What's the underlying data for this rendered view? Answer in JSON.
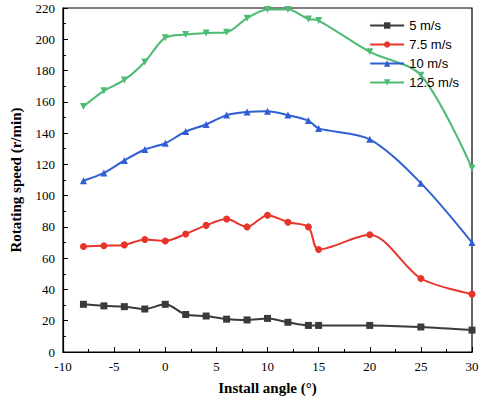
{
  "chart_data": {
    "type": "line",
    "x_label": "Install angle (°)",
    "y_label": "Rotating speed (r/min)",
    "x": [
      -8,
      -6,
      -4,
      -2,
      0,
      2,
      4,
      6,
      8,
      10,
      12,
      14,
      15,
      20,
      25,
      30
    ],
    "series": [
      {
        "name": "5 m/s",
        "color": "#3a3a3a",
        "marker": "square",
        "values": [
          30.5,
          29.5,
          29,
          27.5,
          30.5,
          24,
          23,
          21,
          20.5,
          21.5,
          19,
          17,
          17,
          17,
          16,
          14
        ]
      },
      {
        "name": "7.5 m/s",
        "color": "#e8352b",
        "marker": "circle",
        "values": [
          67.5,
          68,
          68.5,
          72,
          71,
          75.5,
          81,
          85,
          80,
          87.5,
          83,
          80,
          65.5,
          75,
          47,
          37
        ]
      },
      {
        "name": "10 m/s",
        "color": "#2f5fd3",
        "marker": "triangle",
        "values": [
          109.5,
          114.5,
          122.5,
          129.5,
          133.5,
          141,
          145.5,
          151.5,
          153.5,
          154,
          151.5,
          148,
          143,
          136,
          108,
          70
        ]
      },
      {
        "name": "12.5 m/s",
        "color": "#4dbb73",
        "marker": "triangle-down",
        "values": [
          157,
          167,
          174,
          185.5,
          201,
          203,
          204,
          204.5,
          213.5,
          219,
          219,
          213,
          212,
          192,
          177,
          117.5
        ]
      }
    ],
    "xlim": [
      -10,
      30
    ],
    "xticks": [
      -10,
      -5,
      0,
      5,
      10,
      15,
      20,
      25,
      30
    ],
    "ylim": [
      0,
      220
    ],
    "yticks": [
      0,
      20,
      40,
      60,
      80,
      100,
      120,
      140,
      160,
      180,
      200,
      220
    ],
    "grid": false,
    "legend": "upper right"
  }
}
